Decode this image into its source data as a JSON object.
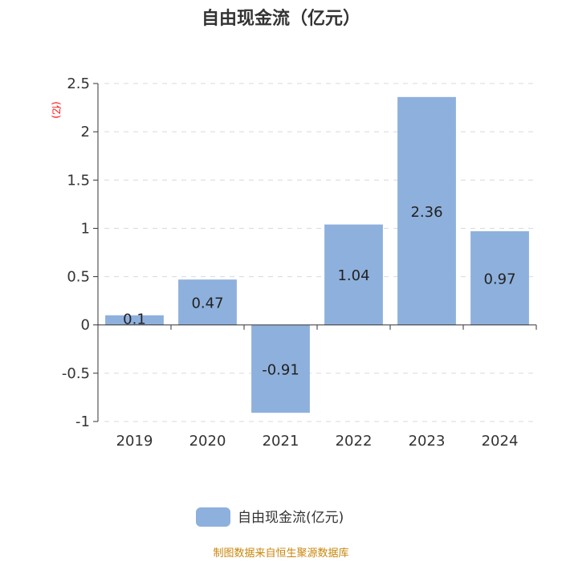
{
  "chart_data": {
    "type": "bar",
    "title": "自由现金流（亿元）",
    "ylabel": "(亿)",
    "categories": [
      "2019",
      "2020",
      "2021",
      "2022",
      "2023",
      "2024"
    ],
    "series": [
      {
        "name": "自由现金流(亿元)",
        "values": [
          0.1,
          0.47,
          -0.91,
          1.04,
          2.36,
          0.97
        ]
      }
    ],
    "data_labels": [
      "0.1",
      "0.47",
      "-0.91",
      "1.04",
      "2.36",
      "0.97"
    ],
    "ylim": [
      -1,
      2.5
    ],
    "yticks": [
      {
        "value": 2.5,
        "label": "2.5"
      },
      {
        "value": 2,
        "label": "2"
      },
      {
        "value": 1.5,
        "label": "1.5"
      },
      {
        "value": 1,
        "label": "1"
      },
      {
        "value": 0.5,
        "label": "0.5"
      },
      {
        "value": 0,
        "label": "0"
      },
      {
        "value": -0.5,
        "label": "-0.5"
      },
      {
        "value": -1,
        "label": "-1"
      }
    ],
    "grid": true,
    "legend_position": "bottom",
    "bar_color": "#8eb0dc",
    "source": "制图数据来自恒生聚源数据库"
  }
}
